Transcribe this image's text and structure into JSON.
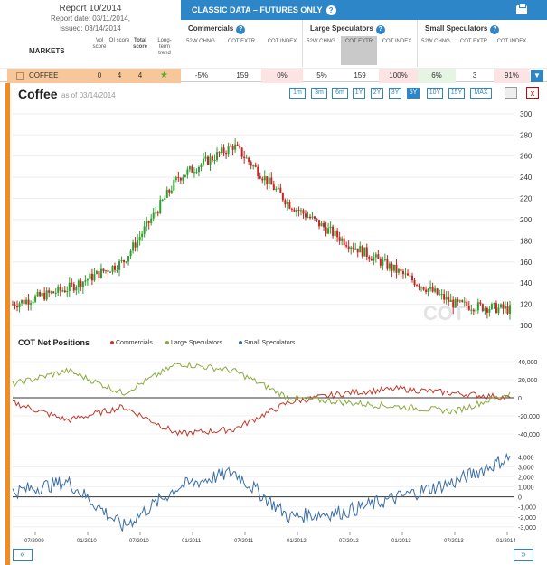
{
  "report": {
    "title": "Report 10/2014",
    "date": "Report date: 03/11/2014,",
    "issued": "issued: 03/14/2014"
  },
  "table_head": {
    "markets": "MARKETS",
    "cols": [
      "Vol score",
      "OI score",
      "Total score",
      "Long-term trend"
    ],
    "classic": "CLASSIC DATA – FUTURES ONLY",
    "groups": [
      {
        "name": "Commercials",
        "subs": [
          "52W CHNG",
          "COT EXTR",
          "COT INDEX"
        ]
      },
      {
        "name": "Large Speculators",
        "subs": [
          "52W CHNG",
          "COT EXTR",
          "COT INDEX"
        ]
      },
      {
        "name": "Small Speculators",
        "subs": [
          "52W CHNG",
          "COT EXTR",
          "COT INDEX"
        ]
      }
    ],
    "help": "?"
  },
  "row": {
    "name": "COFFEE",
    "vol": "0",
    "oi": "4",
    "total": "4",
    "trend_icon": "up-arrow-icon",
    "values": [
      "-5%",
      "159",
      "0%",
      "5%",
      "159",
      "100%",
      "6%",
      "3",
      "91%"
    ]
  },
  "chart_title": "Coffee",
  "as_of": "as of 03/14/2014",
  "ranges": [
    "1m",
    "3m",
    "6m",
    "1Y",
    "2Y",
    "3Y",
    "5Y",
    "10Y",
    "15Y",
    "MAX"
  ],
  "active_range": "5Y",
  "net_title": "COT Net Positions",
  "legend": [
    "Commercials",
    "Large Speculators",
    "Small Speculators"
  ],
  "watermark": "COT",
  "x_ticks": [
    "07/2009",
    "01/2010",
    "07/2010",
    "01/2011",
    "07/2011",
    "01/2012",
    "07/2012",
    "01/2013",
    "07/2013",
    "01/2014"
  ],
  "price_ticks": [
    "300",
    "280",
    "260",
    "240",
    "220",
    "200",
    "180",
    "160",
    "140",
    "120",
    "100"
  ],
  "net_ticks": [
    "40,000",
    "20,000",
    "0",
    "-20,000",
    "-40,000"
  ],
  "small_ticks": [
    "4,000",
    "3,000",
    "2,000",
    "1,000",
    "0",
    "-1,000",
    "-2,000",
    "-3,000"
  ],
  "nav": {
    "left": "«",
    "right": "»"
  },
  "colors": {
    "commercials": "#c0392b",
    "large": "#8aab3c",
    "small": "#3a6ea5",
    "up": "#2e9e2e",
    "down": "#cc2222",
    "accent": "#2c86c8",
    "orange": "#f58a1f"
  },
  "chart_data": [
    {
      "type": "line",
      "title": "Coffee",
      "x": [
        "07/2009",
        "01/2010",
        "07/2010",
        "01/2011",
        "07/2011",
        "01/2012",
        "07/2012",
        "01/2013",
        "07/2013",
        "01/2014"
      ],
      "series": [
        {
          "name": "Coffee",
          "values": [
            120,
            135,
            160,
            240,
            270,
            215,
            180,
            150,
            120,
            115
          ]
        }
      ],
      "ylim": [
        100,
        305
      ]
    },
    {
      "type": "line",
      "title": "COT Net Positions",
      "x": [
        "07/2009",
        "01/2010",
        "07/2010",
        "01/2011",
        "07/2011",
        "01/2012",
        "07/2012",
        "01/2013",
        "07/2013",
        "01/2014"
      ],
      "series": [
        {
          "name": "Commercials",
          "values": [
            -5000,
            -25000,
            -10000,
            -40000,
            -35000,
            -5000,
            5000,
            10000,
            5000,
            0
          ]
        },
        {
          "name": "Large Speculators",
          "values": [
            15000,
            30000,
            5000,
            38000,
            30000,
            0,
            -5000,
            -10000,
            -15000,
            5000
          ]
        }
      ],
      "ylim": [
        -45000,
        45000
      ]
    },
    {
      "type": "line",
      "title": "",
      "x": [
        "07/2009",
        "01/2010",
        "07/2010",
        "01/2011",
        "07/2011",
        "01/2012",
        "07/2012",
        "01/2013",
        "07/2013",
        "01/2014"
      ],
      "series": [
        {
          "name": "Small Speculators",
          "values": [
            500,
            1500,
            -3000,
            1000,
            2500,
            -2000,
            -1500,
            0,
            1500,
            4000
          ]
        }
      ],
      "ylim": [
        -3200,
        4500
      ]
    }
  ]
}
